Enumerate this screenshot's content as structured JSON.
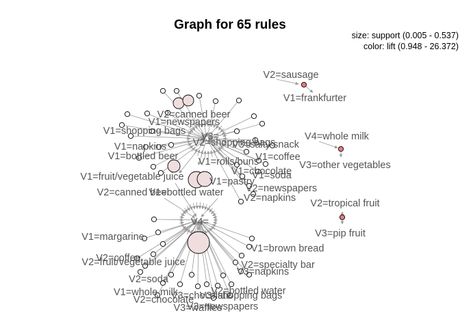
{
  "title": "Graph for 65 rules",
  "legend": {
    "size": "size: support (0.005 - 0.537)",
    "color": "color: lift (0.948 - 26.372)"
  },
  "colors": {
    "low_lift": "#fafafa",
    "mid_lift": "#f0dede",
    "high_lift": "#e87a7a",
    "edge": "#9a9a9a",
    "label": "#555555"
  },
  "labels": [
    "V2=sausage",
    "V1=frankfurter",
    "V4=whole milk",
    "V3=other vegetables",
    "V2=tropical fruit",
    "V3=pip fruit",
    "V2=canned beer",
    "V1=newspapers",
    "V1=shopping bags",
    "V3=",
    "V2=shopping bags",
    "V3=salty snack",
    "V1=napkins",
    "V1=bottled beer",
    "V1=coffee",
    "V1=rolls/buns",
    "V1=chocolate",
    "V1=fruit/vegetable juice",
    "V1=pastry",
    "V1=soda",
    "V2=canned beer",
    "V1=bottled water",
    "V2=newspapers",
    "V2=napkins",
    "V4=",
    "V1=margarine",
    "V1=brown bread",
    "V2=coffee",
    "V2=fruit/vegetable juice",
    "V2=specialty bar",
    "V2=soda",
    "V3=napkins",
    "V1=whole milk",
    "V2=bottled water",
    "V3=shopping bags",
    "V2=chocolate",
    "V3=chocolate",
    "V3=newspapers",
    "V3=waffles"
  ]
}
